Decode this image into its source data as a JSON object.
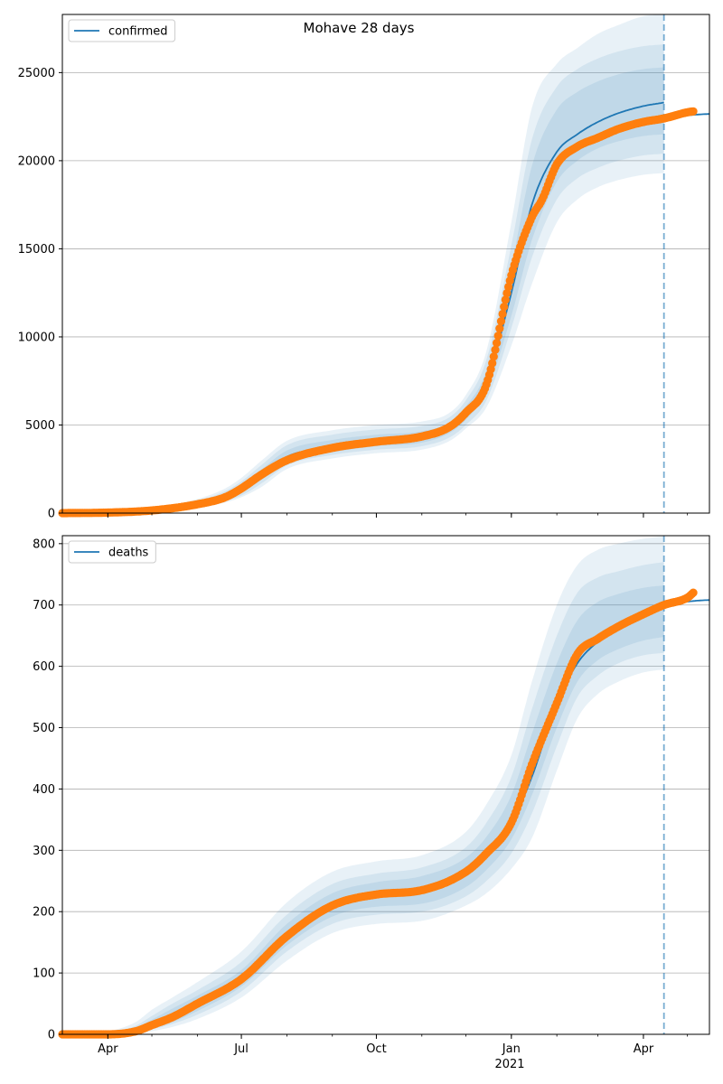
{
  "figure": {
    "title": "Mohave 28 days"
  },
  "colors": {
    "model_line": "#1f77b4",
    "observed": "#ff7f0e",
    "band": "#1f77b4",
    "grid": "#b0b0b0"
  },
  "chart_data": [
    {
      "type": "line",
      "id": "confirmed",
      "title": "Mohave 28 days",
      "x_axis": {
        "type": "date",
        "range": [
          "2020-03-01",
          "2021-05-16"
        ],
        "tick_labels": [
          "Apr",
          "Jul",
          "Oct",
          "Jan",
          "Apr"
        ],
        "tick_dates": [
          "2020-04-01",
          "2020-07-01",
          "2020-10-01",
          "2021-01-01",
          "2021-04-01"
        ],
        "secondary_label": "2021"
      },
      "y_axis": {
        "range": [
          0,
          28300
        ],
        "ticks": [
          0,
          5000,
          10000,
          15000,
          20000,
          25000
        ],
        "tick_labels": [
          "0",
          "5000",
          "10000",
          "15000",
          "20000",
          "25000"
        ]
      },
      "grid": "horizontal",
      "legend": {
        "placement": "top-left",
        "entries": [
          "confirmed"
        ]
      },
      "forecast_start": "2021-04-15",
      "series": [
        {
          "name": "confirmed",
          "kind": "model-line",
          "x": [
            "2020-03-01",
            "2020-04-01",
            "2020-05-01",
            "2020-06-01",
            "2020-06-20",
            "2020-07-01",
            "2020-07-15",
            "2020-08-01",
            "2020-09-01",
            "2020-10-01",
            "2020-11-01",
            "2020-11-20",
            "2020-12-01",
            "2020-12-15",
            "2021-01-01",
            "2021-01-15",
            "2021-02-01",
            "2021-02-15",
            "2021-03-01",
            "2021-03-15",
            "2021-04-01",
            "2021-04-15"
          ],
          "y": [
            0,
            40,
            150,
            500,
            900,
            1400,
            2200,
            3200,
            3750,
            4100,
            4350,
            4900,
            5700,
            7500,
            12500,
            17500,
            20500,
            21500,
            22200,
            22700,
            23100,
            23300
          ]
        },
        {
          "name": "observed",
          "kind": "scatter",
          "x": [
            "2020-03-01",
            "2020-04-01",
            "2020-05-01",
            "2020-06-01",
            "2020-06-20",
            "2020-07-01",
            "2020-07-15",
            "2020-08-01",
            "2020-09-01",
            "2020-10-01",
            "2020-11-01",
            "2020-11-20",
            "2020-12-01",
            "2020-12-15",
            "2021-01-01",
            "2021-01-15",
            "2021-01-22",
            "2021-02-01",
            "2021-02-15",
            "2021-03-01",
            "2021-03-15",
            "2021-04-01",
            "2021-04-15",
            "2021-05-01",
            "2021-05-05"
          ],
          "y": [
            0,
            30,
            150,
            500,
            900,
            1400,
            2200,
            3000,
            3700,
            4050,
            4350,
            4900,
            5700,
            7300,
            13500,
            16800,
            17800,
            19800,
            20800,
            21300,
            21800,
            22200,
            22400,
            22750,
            22800
          ]
        },
        {
          "name": "forecast",
          "kind": "forecast-line",
          "x": [
            "2021-04-15",
            "2021-05-16"
          ],
          "y": [
            22400,
            22650
          ]
        }
      ],
      "bands": [
        {
          "upper": [
            0,
            70,
            300,
            800,
            1400,
            2000,
            3000,
            4100,
            4700,
            5000,
            5200,
            5700,
            6700,
            9200,
            16500,
            23000,
            25500,
            26400,
            27200,
            27700,
            28200,
            28300
          ],
          "lower": [
            0,
            20,
            80,
            300,
            600,
            900,
            1500,
            2500,
            3100,
            3400,
            3600,
            4100,
            4800,
            6000,
            9500,
            13000,
            16500,
            17800,
            18500,
            18900,
            19200,
            19300
          ]
        },
        {
          "upper": [
            0,
            60,
            250,
            700,
            1250,
            1800,
            2750,
            3850,
            4450,
            4750,
            4950,
            5450,
            6400,
            8700,
            15200,
            21200,
            24200,
            25200,
            25800,
            26200,
            26500,
            26600
          ],
          "lower": [
            0,
            25,
            100,
            350,
            700,
            1000,
            1700,
            2700,
            3300,
            3600,
            3800,
            4300,
            5000,
            6400,
            10500,
            14500,
            17800,
            19000,
            19600,
            20000,
            20300,
            20400
          ]
        },
        {
          "upper": [
            0,
            50,
            200,
            600,
            1100,
            1600,
            2500,
            3550,
            4150,
            4450,
            4650,
            5150,
            6050,
            8100,
            14000,
            19700,
            22900,
            23900,
            24500,
            24900,
            25200,
            25300
          ],
          "lower": [
            0,
            30,
            120,
            400,
            780,
            1150,
            1900,
            2900,
            3450,
            3800,
            4000,
            4550,
            5300,
            6900,
            11200,
            15500,
            18800,
            20000,
            20700,
            21100,
            21400,
            21500
          ]
        }
      ]
    },
    {
      "type": "line",
      "id": "deaths",
      "title": "",
      "x_axis": {
        "type": "date",
        "range": [
          "2020-03-01",
          "2021-05-16"
        ],
        "tick_labels": [
          "Apr",
          "Jul",
          "Oct",
          "Jan",
          "Apr"
        ],
        "tick_dates": [
          "2020-04-01",
          "2020-07-01",
          "2020-10-01",
          "2021-01-01",
          "2021-04-01"
        ],
        "secondary_label": "2021"
      },
      "y_axis": {
        "range": [
          0,
          813
        ],
        "ticks": [
          0,
          100,
          200,
          300,
          400,
          500,
          600,
          700,
          800
        ],
        "tick_labels": [
          "0",
          "100",
          "200",
          "300",
          "400",
          "500",
          "600",
          "700",
          "800"
        ]
      },
      "grid": "horizontal",
      "legend": {
        "placement": "top-left",
        "entries": [
          "deaths"
        ]
      },
      "forecast_start": "2021-04-15",
      "series": [
        {
          "name": "deaths",
          "kind": "model-line",
          "x": [
            "2020-03-01",
            "2020-04-01",
            "2020-04-20",
            "2020-05-01",
            "2020-05-15",
            "2020-06-01",
            "2020-07-01",
            "2020-08-01",
            "2020-09-01",
            "2020-10-01",
            "2020-11-01",
            "2020-12-01",
            "2020-12-15",
            "2021-01-01",
            "2021-01-15",
            "2021-02-01",
            "2021-02-15",
            "2021-03-01",
            "2021-03-15",
            "2021-04-01",
            "2021-04-15"
          ],
          "y": [
            0,
            0,
            5,
            15,
            28,
            50,
            90,
            160,
            210,
            228,
            235,
            265,
            295,
            345,
            420,
            540,
            605,
            640,
            660,
            680,
            695
          ]
        },
        {
          "name": "observed",
          "kind": "scatter",
          "x": [
            "2020-03-01",
            "2020-04-01",
            "2020-04-20",
            "2020-05-01",
            "2020-05-15",
            "2020-06-01",
            "2020-07-01",
            "2020-08-01",
            "2020-09-01",
            "2020-10-01",
            "2020-11-01",
            "2020-12-01",
            "2020-12-15",
            "2021-01-01",
            "2021-01-15",
            "2021-02-01",
            "2021-02-15",
            "2021-03-01",
            "2021-03-15",
            "2021-04-01",
            "2021-04-15",
            "2021-05-01",
            "2021-05-05"
          ],
          "y": [
            0,
            0,
            5,
            15,
            28,
            50,
            90,
            160,
            210,
            228,
            235,
            265,
            295,
            345,
            440,
            540,
            620,
            645,
            665,
            685,
            700,
            712,
            720
          ]
        },
        {
          "name": "forecast",
          "kind": "forecast-line",
          "x": [
            "2021-04-15",
            "2021-05-16"
          ],
          "y": [
            700,
            708
          ]
        }
      ],
      "bands": [
        {
          "upper": [
            0,
            5,
            20,
            40,
            60,
            85,
            135,
            215,
            265,
            282,
            292,
            330,
            375,
            455,
            575,
            700,
            765,
            790,
            800,
            808,
            812
          ],
          "lower": [
            0,
            0,
            0,
            5,
            12,
            25,
            60,
            120,
            165,
            180,
            185,
            210,
            230,
            270,
            320,
            430,
            515,
            555,
            575,
            590,
            595
          ]
        },
        {
          "upper": [
            0,
            3,
            14,
            30,
            50,
            72,
            118,
            195,
            245,
            262,
            272,
            305,
            345,
            420,
            530,
            650,
            720,
            745,
            755,
            765,
            770
          ],
          "lower": [
            0,
            0,
            1,
            8,
            17,
            32,
            70,
            135,
            180,
            195,
            200,
            225,
            250,
            295,
            360,
            470,
            550,
            585,
            605,
            618,
            622
          ]
        },
        {
          "upper": [
            0,
            2,
            10,
            24,
            42,
            63,
            105,
            180,
            230,
            248,
            258,
            288,
            322,
            390,
            490,
            605,
            675,
            705,
            718,
            728,
            732
          ],
          "lower": [
            0,
            0,
            2,
            10,
            20,
            38,
            78,
            145,
            192,
            208,
            213,
            240,
            268,
            318,
            390,
            500,
            575,
            610,
            628,
            642,
            648
          ]
        }
      ]
    }
  ]
}
